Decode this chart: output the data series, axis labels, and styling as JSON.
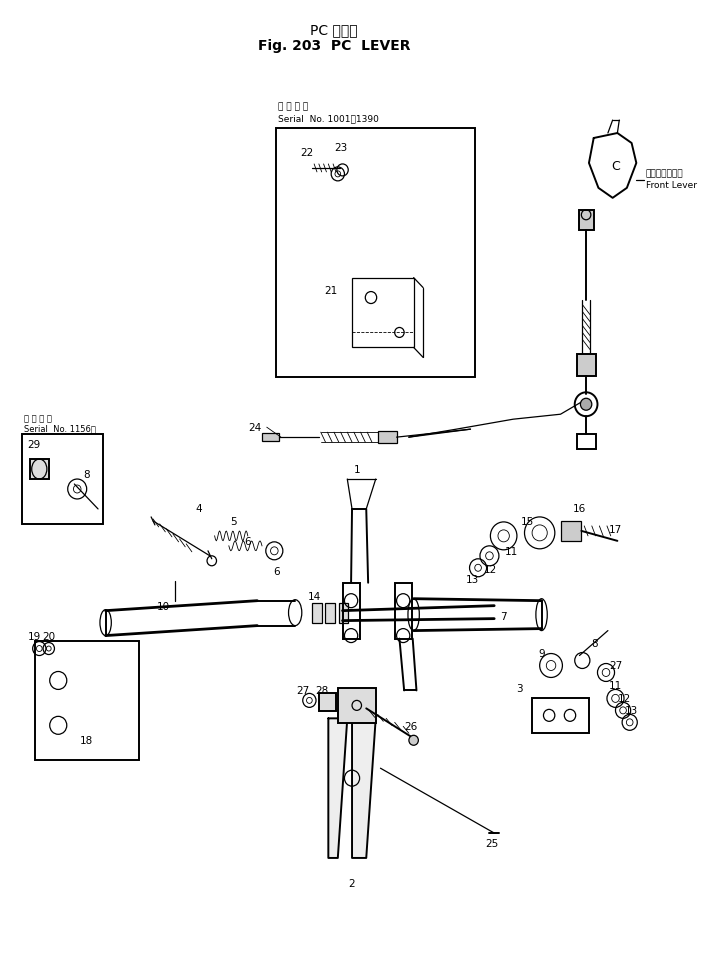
{
  "title_line1": "PC レバー",
  "title_line2": "Fig. 203  PC  LEVER",
  "bg_color": "#ffffff",
  "line_color": "#000000",
  "title_fontsize": 10,
  "label_fontsize": 7.5,
  "fig_width": 7.02,
  "fig_height": 9.78,
  "serial_box1_text_l1": "適 用 号 表",
  "serial_box1_text_l2": "Serial  No. 1001～1390",
  "serial_box2_text_l1": "適 用 号 表",
  "serial_box2_text_l2": "Serial  No. 1156～",
  "front_lever_jp": "フロントレバー",
  "front_lever_en": "Front Lever"
}
